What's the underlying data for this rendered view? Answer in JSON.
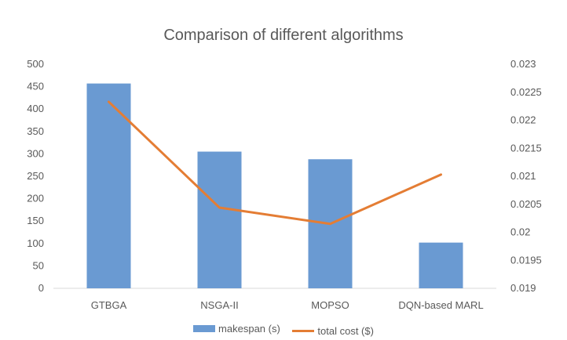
{
  "chart_data": {
    "type": "bar",
    "title": "Comparison of different algorithms",
    "categories": [
      "GTBGA",
      "NSGA-II",
      "MOPSO",
      "DQN-based MARL"
    ],
    "series": [
      {
        "name": "makespan (s)",
        "type": "bar",
        "axis": "left",
        "color": "#6a9ad2",
        "values": [
          457,
          305,
          288,
          102
        ]
      },
      {
        "name": "total cost ($)",
        "type": "line",
        "axis": "right",
        "color": "#e47d34",
        "values": [
          0.02233,
          0.02044,
          0.02015,
          0.02103
        ]
      }
    ],
    "y_left": {
      "ylim": [
        0,
        500
      ],
      "ticks": [
        "0",
        "50",
        "100",
        "150",
        "200",
        "250",
        "300",
        "350",
        "400",
        "450",
        "500"
      ]
    },
    "y_right": {
      "ylim": [
        0.019,
        0.023
      ],
      "ticks": [
        "0.019",
        "0.0195",
        "0.02",
        "0.0205",
        "0.021",
        "0.0215",
        "0.022",
        "0.0225",
        "0.023"
      ]
    },
    "grid": false,
    "legend_position": "bottom"
  }
}
